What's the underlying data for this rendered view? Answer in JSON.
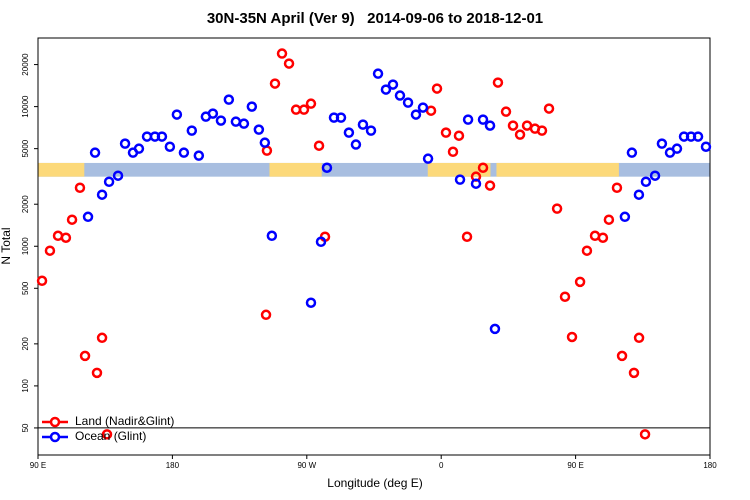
{
  "chart_data": {
    "type": "scatter",
    "title": "30N-35N April (Ver 9)   2014-09-06 to 2018-12-01",
    "x_label": "Longitude (deg E)",
    "y_label": "N Total",
    "log_y": true,
    "xlim": [
      90,
      540
    ],
    "ylim": [
      32,
      31000
    ],
    "xticks": [
      {
        "value": 90,
        "label": "90 E"
      },
      180,
      {
        "value": 270,
        "label": "90 W"
      },
      {
        "value": 360,
        "label": "0"
      },
      {
        "value": 450,
        "label": "90 E"
      },
      {
        "value": 540,
        "label": "180"
      }
    ],
    "yticks": [
      50,
      100,
      200,
      500,
      1000,
      2000,
      5000,
      10000,
      20000
    ],
    "hline": 50,
    "legend": "bottom-left",
    "mask_band": {
      "ylim": [
        3150,
        3950
      ],
      "ocean_color": "#a8bee0",
      "land_color": "#fcd97a",
      "land": [
        [
          90,
          121
        ],
        [
          245,
          280
        ],
        [
          351,
          393
        ],
        [
          397,
          479
        ]
      ]
    },
    "series": [
      {
        "name": "Land (Nadir&Glint)",
        "color": "#ff0000",
        "x": [
          92.7,
          98,
          103.4,
          108.7,
          112.8,
          118.1,
          121.5,
          129.5,
          132.9,
          136.2,
          242.7,
          243.3,
          248.7,
          253.4,
          258.1,
          262.8,
          268.1,
          272.8,
          278.2,
          282.2,
          353.2,
          357.2,
          363.2,
          367.9,
          371.9,
          377.3,
          383.3,
          388,
          392.7,
          398,
          403.4,
          408.1,
          412.8,
          417.5,
          422.8,
          427.5,
          432.2,
          437.6,
          442.9,
          447.6,
          453,
          457.6,
          463,
          468.3,
          472.3,
          477.7,
          481.1,
          489.1,
          492.5,
          496.5
        ],
        "values": [
          566,
          929,
          1189,
          1151,
          1549,
          2624,
          164,
          124,
          221,
          45,
          323,
          4840,
          14620,
          23990,
          20330,
          9510,
          9510,
          10500,
          5250,
          1170,
          9350,
          13460,
          6510,
          4750,
          6190,
          1170,
          3150,
          3650,
          2720,
          14860,
          9200,
          7310,
          6300,
          7310,
          6950,
          6730,
          9680,
          1860,
          435,
          224,
          556,
          929,
          1189,
          1151,
          1549,
          2624,
          164,
          124,
          221,
          45
        ]
      },
      {
        "name": "Ocean (Glint)",
        "color": "#0000ff",
        "x": [
          123.5,
          128.2,
          132.9,
          137.6,
          143.6,
          148.3,
          153.6,
          157.6,
          163,
          168.3,
          173,
          178.3,
          183,
          187.7,
          193,
          197.7,
          202.4,
          207.1,
          212.5,
          217.8,
          222.5,
          227.9,
          233.2,
          237.9,
          241.9,
          246.6,
          272.8,
          279.5,
          283.5,
          288.2,
          292.9,
          298.2,
          302.9,
          307.6,
          313,
          317.7,
          323,
          327.7,
          332.4,
          337.8,
          343.1,
          347.8,
          351.2,
          372.6,
          378,
          383.3,
          388,
          392.7,
          396,
          483,
          487.7,
          492.4,
          497.1,
          503.2,
          507.8,
          513.2,
          517.9,
          522.6,
          527.3,
          532,
          537.3
        ],
        "values": [
          1626,
          4680,
          2339,
          2897,
          3200,
          5430,
          4680,
          5000,
          6100,
          6100,
          6100,
          5160,
          8770,
          4680,
          6730,
          4456,
          8470,
          8910,
          7940,
          11220,
          7800,
          7550,
          10000,
          6840,
          5520,
          1189,
          394,
          1077,
          3650,
          8340,
          8340,
          6510,
          5350,
          7430,
          6730,
          17220,
          13240,
          14380,
          12000,
          10680,
          8770,
          9840,
          4240,
          3000,
          8070,
          2805,
          8070,
          7310,
          256,
          1626,
          4680,
          2339,
          2897,
          3200,
          5430,
          4680,
          5000,
          6100,
          6100,
          6100,
          5160
        ]
      }
    ]
  }
}
